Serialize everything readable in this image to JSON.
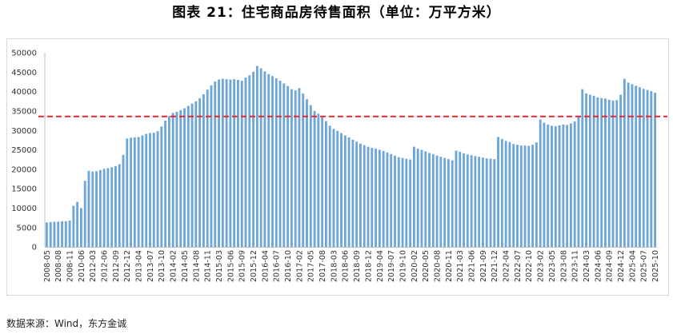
{
  "chart_data": {
    "type": "bar",
    "title": "图表 21：住宅商品房待售面积（单位：万平方米）",
    "xlabel": "",
    "ylabel": "",
    "ylim": [
      0,
      50000
    ],
    "yticks": [
      0,
      5000,
      10000,
      15000,
      20000,
      25000,
      30000,
      35000,
      40000,
      45000,
      50000
    ],
    "grid": false,
    "legend": "none",
    "bar_color": "#6ea6d8",
    "reference_line": {
      "value": 33600,
      "color": "#e8272c"
    },
    "categories": [
      "2008-05",
      "",
      "",
      "2008-08",
      "",
      "",
      "2008-11",
      "",
      "",
      "2010-06",
      "",
      "",
      "2012-03",
      "",
      "",
      "2012-06",
      "",
      "",
      "2012-09",
      "",
      "",
      "2012-12",
      "",
      "",
      "2013-04",
      "",
      "",
      "2013-07",
      "",
      "",
      "2013-10",
      "",
      "",
      "2014-02",
      "",
      "",
      "2014-05",
      "",
      "",
      "2014-08",
      "",
      "",
      "2014-11",
      "",
      "",
      "2015-03",
      "",
      "",
      "2015-06",
      "",
      "",
      "2015-09",
      "",
      "",
      "2015-12",
      "",
      "",
      "2016-04",
      "",
      "",
      "2016-07",
      "",
      "",
      "2016-10",
      "",
      "",
      "2017-02",
      "",
      "",
      "2017-05",
      "",
      "",
      "2017-08",
      "",
      "",
      "2018-03",
      "",
      "",
      "2018-06",
      "",
      "",
      "2018-09",
      "",
      "",
      "2018-12",
      "",
      "",
      "2019-04",
      "",
      "",
      "2019-07",
      "",
      "",
      "2019-10",
      "",
      "",
      "2020-02",
      "",
      "",
      "2020-05",
      "",
      "",
      "2020-08",
      "",
      "",
      "2020-11",
      "",
      "",
      "2021-03",
      "",
      "",
      "2021-06",
      "",
      "",
      "2021-09",
      "",
      "",
      "2021-12",
      "",
      "",
      "2022-04",
      "",
      "",
      "2022-07",
      "",
      "",
      "2022-10",
      "",
      "",
      "2023-02",
      "",
      "",
      "2023-05",
      "",
      "",
      "2023-08",
      "",
      "",
      "2023-11",
      "",
      "",
      "2024-03",
      "",
      "",
      "2024-06",
      "",
      "",
      "2024-09",
      "",
      "",
      "2024-12",
      "",
      "",
      "2025-04",
      "",
      "",
      "2025-07",
      "",
      "",
      "2025-10"
    ],
    "values": [
      6300,
      6400,
      6500,
      6500,
      6600,
      6600,
      6800,
      10600,
      11600,
      10000,
      17000,
      19600,
      19400,
      19500,
      19800,
      20100,
      20300,
      20500,
      20800,
      21300,
      23700,
      27900,
      28100,
      28200,
      28300,
      28700,
      29100,
      29300,
      29400,
      29800,
      31000,
      32500,
      33700,
      34500,
      34800,
      35200,
      35700,
      36300,
      36900,
      37500,
      38300,
      39300,
      40500,
      41600,
      42600,
      43100,
      43300,
      43200,
      43100,
      43200,
      43000,
      42800,
      43600,
      44200,
      45100,
      46600,
      46000,
      45200,
      44500,
      44000,
      43400,
      42800,
      42100,
      41400,
      40600,
      40300,
      40900,
      39500,
      38000,
      36500,
      35000,
      34300,
      33400,
      32400,
      31200,
      30400,
      29900,
      29300,
      28700,
      28200,
      27600,
      27100,
      26600,
      26200,
      25800,
      25500,
      25300,
      25000,
      24700,
      24300,
      23900,
      23500,
      23100,
      22900,
      22700,
      22500,
      25800,
      25300,
      25000,
      24600,
      24200,
      23900,
      23500,
      23200,
      22900,
      22600,
      22300,
      24800,
      24500,
      24100,
      23800,
      23600,
      23400,
      23200,
      23000,
      22800,
      22700,
      22600,
      28300,
      27800,
      27300,
      27000,
      26500,
      26300,
      26100,
      26100,
      26000,
      26300,
      26900,
      32800,
      32000,
      31500,
      31200,
      31100,
      31300,
      31500,
      31400,
      31800,
      32300,
      33600,
      40600,
      39500,
      39200,
      38900,
      38500,
      38300,
      38200,
      37900,
      37700,
      37800,
      39200,
      43300,
      42300,
      41900,
      41500,
      41100,
      40700,
      40400,
      40100,
      39700
    ]
  },
  "source": "数据来源：Wind，东方金诚"
}
